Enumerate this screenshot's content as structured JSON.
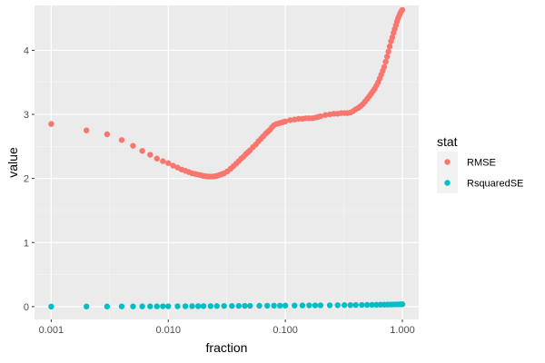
{
  "chart_data": {
    "type": "scatter",
    "xlabel": "fraction",
    "ylabel": "value",
    "x_scale": "log10",
    "xlim": [
      0.001,
      1.0
    ],
    "ylim": [
      -0.2,
      4.7
    ],
    "x_ticks": [
      0.001,
      0.01,
      0.1,
      1.0
    ],
    "x_tick_labels": [
      "0.001",
      "0.010",
      "0.100",
      "1.000"
    ],
    "y_ticks": [
      0,
      1,
      2,
      3,
      4
    ],
    "y_tick_labels": [
      "0",
      "1",
      "2",
      "3",
      "4"
    ],
    "grid": true,
    "panel_background": "#ebebeb",
    "legend": {
      "title": "stat",
      "placement": "right",
      "entries": [
        {
          "label": "RMSE",
          "color": "#f8766d"
        },
        {
          "label": "RsquaredSE",
          "color": "#00bfc4"
        }
      ]
    },
    "series": [
      {
        "name": "RMSE",
        "color": "#f8766d",
        "x": [
          0.001,
          0.002,
          0.003,
          0.004,
          0.005,
          0.006,
          0.007,
          0.008,
          0.009,
          0.01,
          0.011,
          0.012,
          0.013,
          0.014,
          0.015,
          0.016,
          0.017,
          0.018,
          0.019,
          0.02,
          0.021,
          0.022,
          0.023,
          0.024,
          0.025,
          0.026,
          0.027,
          0.028,
          0.029,
          0.03,
          0.032,
          0.034,
          0.036,
          0.038,
          0.04,
          0.042,
          0.044,
          0.046,
          0.048,
          0.05,
          0.053,
          0.056,
          0.059,
          0.062,
          0.065,
          0.068,
          0.071,
          0.074,
          0.077,
          0.08,
          0.084,
          0.088,
          0.092,
          0.096,
          0.1,
          0.11,
          0.12,
          0.13,
          0.14,
          0.15,
          0.16,
          0.17,
          0.18,
          0.19,
          0.2,
          0.22,
          0.24,
          0.26,
          0.28,
          0.3,
          0.32,
          0.34,
          0.36,
          0.38,
          0.4,
          0.42,
          0.44,
          0.46,
          0.48,
          0.5,
          0.52,
          0.54,
          0.56,
          0.58,
          0.6,
          0.62,
          0.64,
          0.66,
          0.68,
          0.7,
          0.72,
          0.74,
          0.76,
          0.78,
          0.8,
          0.82,
          0.84,
          0.86,
          0.88,
          0.9,
          0.92,
          0.94,
          0.96,
          0.98,
          1.0
        ],
        "y": [
          2.85,
          2.75,
          2.69,
          2.6,
          2.51,
          2.43,
          2.37,
          2.31,
          2.27,
          2.24,
          2.2,
          2.17,
          2.14,
          2.12,
          2.1,
          2.08,
          2.07,
          2.06,
          2.05,
          2.04,
          2.035,
          2.03,
          2.03,
          2.03,
          2.035,
          2.04,
          2.05,
          2.06,
          2.07,
          2.08,
          2.11,
          2.15,
          2.19,
          2.23,
          2.27,
          2.31,
          2.34,
          2.38,
          2.41,
          2.44,
          2.49,
          2.53,
          2.58,
          2.62,
          2.66,
          2.7,
          2.73,
          2.76,
          2.8,
          2.83,
          2.85,
          2.86,
          2.87,
          2.88,
          2.89,
          2.91,
          2.92,
          2.93,
          2.93,
          2.94,
          2.94,
          2.94,
          2.95,
          2.96,
          2.97,
          2.99,
          3.0,
          3.01,
          3.01,
          3.02,
          3.02,
          3.02,
          3.03,
          3.05,
          3.08,
          3.1,
          3.13,
          3.16,
          3.2,
          3.24,
          3.28,
          3.32,
          3.36,
          3.4,
          3.45,
          3.5,
          3.56,
          3.62,
          3.68,
          3.74,
          3.82,
          3.9,
          3.98,
          4.06,
          4.14,
          4.2,
          4.27,
          4.33,
          4.39,
          4.45,
          4.5,
          4.54,
          4.58,
          4.61,
          4.63
        ]
      },
      {
        "name": "RsquaredSE",
        "color": "#00bfc4",
        "x": [
          0.001,
          0.002,
          0.003,
          0.004,
          0.005,
          0.006,
          0.007,
          0.008,
          0.009,
          0.01,
          0.012,
          0.014,
          0.016,
          0.018,
          0.02,
          0.023,
          0.026,
          0.03,
          0.035,
          0.04,
          0.045,
          0.05,
          0.06,
          0.07,
          0.08,
          0.09,
          0.1,
          0.12,
          0.14,
          0.16,
          0.18,
          0.2,
          0.24,
          0.28,
          0.32,
          0.36,
          0.4,
          0.45,
          0.5,
          0.55,
          0.6,
          0.65,
          0.7,
          0.75,
          0.8,
          0.85,
          0.9,
          0.95,
          1.0
        ],
        "y": [
          0.001,
          0.002,
          0.002,
          0.003,
          0.003,
          0.004,
          0.004,
          0.004,
          0.005,
          0.005,
          0.006,
          0.006,
          0.007,
          0.007,
          0.008,
          0.008,
          0.009,
          0.01,
          0.01,
          0.011,
          0.012,
          0.012,
          0.013,
          0.014,
          0.015,
          0.015,
          0.016,
          0.017,
          0.018,
          0.019,
          0.019,
          0.02,
          0.021,
          0.022,
          0.023,
          0.024,
          0.025,
          0.026,
          0.027,
          0.028,
          0.029,
          0.03,
          0.031,
          0.032,
          0.033,
          0.034,
          0.035,
          0.036,
          0.037
        ]
      }
    ]
  }
}
